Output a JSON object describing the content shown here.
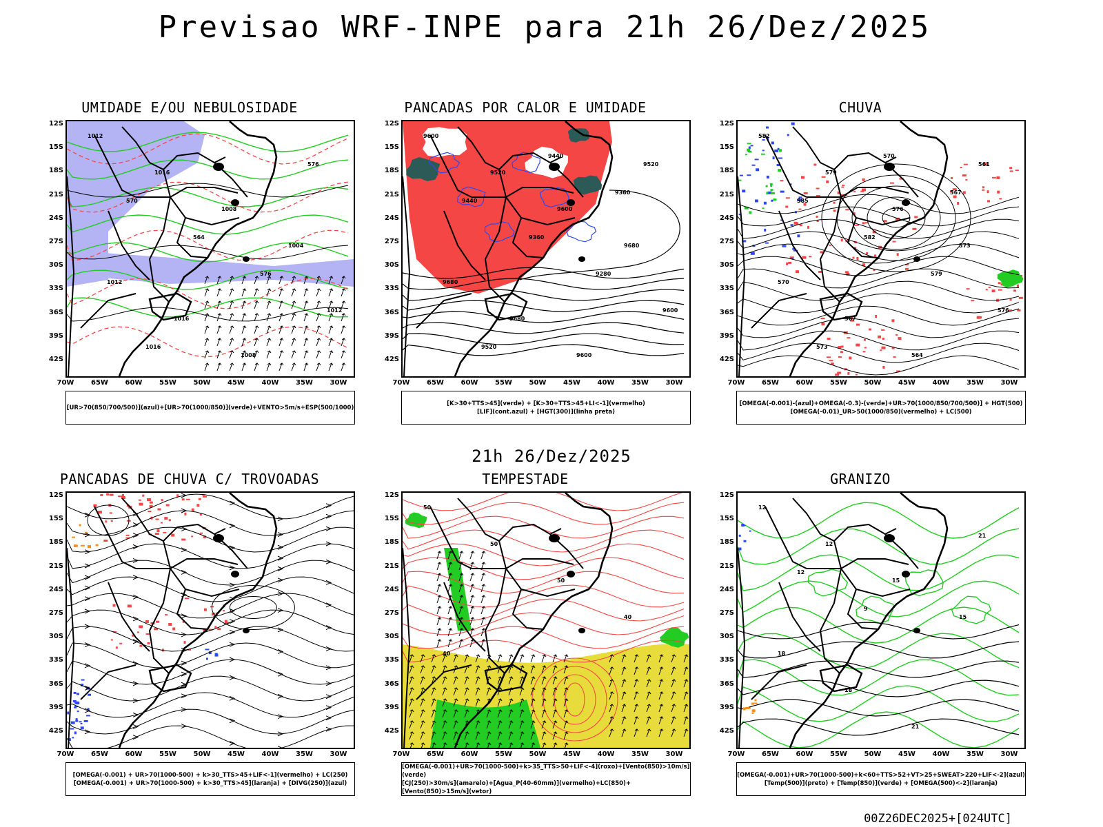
{
  "header": {
    "title": "Previsao WRF-INPE  para 21h 26/Dez/2025",
    "subtitle": "21h 26/Dez/2025",
    "footer": "00Z26DEC2025+[024UTC]"
  },
  "axes": {
    "lat_labels": [
      "12S",
      "15S",
      "18S",
      "21S",
      "24S",
      "27S",
      "30S",
      "33S",
      "36S",
      "39S",
      "42S"
    ],
    "lon_labels": [
      "70W",
      "65W",
      "60W",
      "55W",
      "50W",
      "45W",
      "40W",
      "35W",
      "30W"
    ]
  },
  "colors": {
    "blue_shade": "#b4b4f5",
    "red_shade": "#f54646",
    "dark_teal": "#2c5a56",
    "green": "#22cc22",
    "yellow": "#e8dc3c",
    "blue": "#2e48f0",
    "orange": "#ff8c1a"
  },
  "panels": [
    {
      "id": "umidade",
      "title": "UMIDADE E/OU NEBULOSIDADE",
      "legend": [
        "[UR>70(850/700/500)](azul)+[UR>70(1000/850)](verde)+VENTO>5m/s+ESP(500/1000)"
      ],
      "contour_labels": [
        "1012",
        "1016",
        "1008",
        "1004",
        "1012",
        "1016",
        "1008",
        "576",
        "570",
        "564",
        "576",
        "1012",
        "1016"
      ]
    },
    {
      "id": "pancadas-calor",
      "title": "PANCADAS POR CALOR E UMIDADE",
      "legend": [
        "[K>30+TTS>45](verde)  +  [K>30+TTS>45+LI<-1](vermelho)",
        "[LIF](cont.azul)  +  [HGT(300)](linha preta)"
      ],
      "contour_labels": [
        "9600",
        "9520",
        "9600",
        "9680",
        "9680",
        "9680",
        "9600",
        "9520",
        "9440",
        "9360",
        "9280",
        "9600",
        "9520",
        "9440",
        "9360"
      ]
    },
    {
      "id": "chuva",
      "title": "CHUVA",
      "legend": [
        "[OMEGA(-0.001)-(azul)+OMEGA(-0.3)-(verde)+UR>70(1000/850/700/500)]  +  HGT(500)",
        "[OMEGA(-0.01)_UR>50(1000/850)(vermelho)  +  LC(500)"
      ],
      "contour_labels": [
        "582",
        "579",
        "576",
        "573",
        "570",
        "567",
        "564",
        "561",
        "585",
        "582",
        "579",
        "576",
        "573",
        "570",
        "567"
      ]
    },
    {
      "id": "pancadas-trovoadas",
      "title": "PANCADAS DE CHUVA C/ TROVOADAS",
      "legend": [
        "[OMEGA(-0.001)  +  UR>70(1000-500)  +  k>30_TTS>45+LIF<-1](vermelho)  +  LC(250)",
        "[OMEGA(-0.001)  +  UR>70(1000-500)  +  k>30_TTS>45](laranja)  +  [DIVG(250)](azul)"
      ],
      "contour_labels": []
    },
    {
      "id": "tempestade",
      "title": "TEMPESTADE",
      "legend": [
        "[OMEGA(-0.001)+UR>70(1000-500)+k>35_TTS>50+LIF<-4](roxo)+[Vento(850)>10m/s](verde)",
        "[CJ(250)>30m/s](amarelo)+[Agua_P(40-60mm)](vermelho)+LC(850)+[Vento(850)>15m/s](vetor)"
      ],
      "contour_labels": [
        "50",
        "50",
        "50",
        "40",
        "40"
      ]
    },
    {
      "id": "granizo",
      "title": "GRANIZO",
      "legend": [
        "[OMEGA(-0.001)+UR>70(1000-500)+k<60+TTS>52+VT>25+SWEAT>220+LIF<-2](azul)",
        "[Temp(500)](preto)  +  [Temp(850)](verde)  +  [OMEGA(500)<-2](laranja)"
      ],
      "contour_labels": [
        "12",
        "12",
        "15",
        "15",
        "18",
        "18",
        "21",
        "21",
        "12",
        "9"
      ]
    }
  ]
}
